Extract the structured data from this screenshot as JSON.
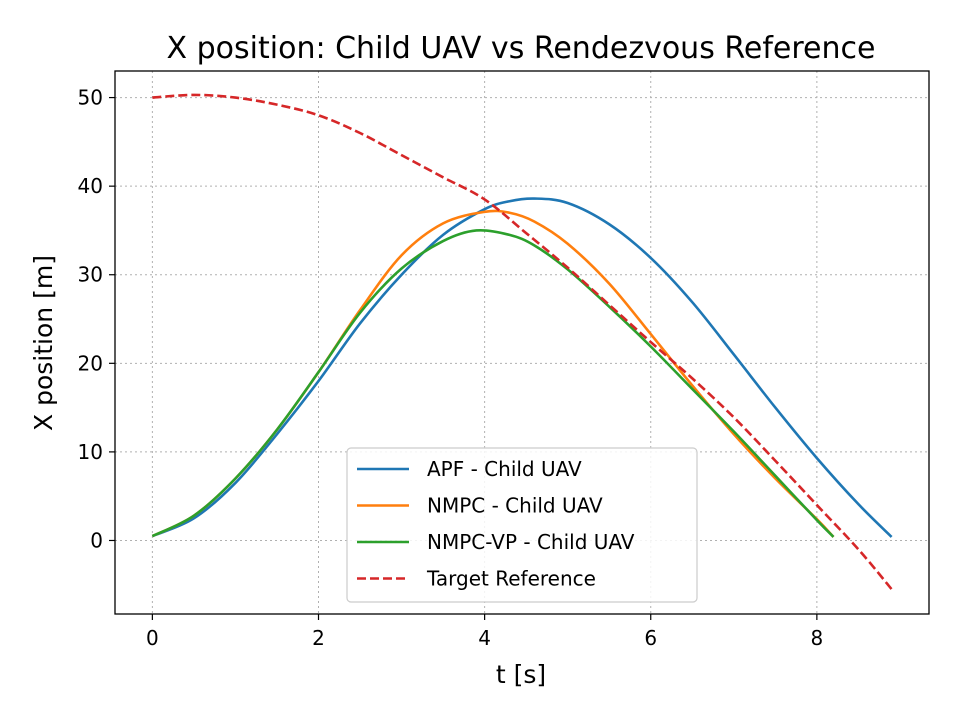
{
  "chart_data": {
    "type": "line",
    "title": "X position: Child UAV vs Rendezvous Reference",
    "xlabel": "t [s]",
    "ylabel": "X position [m]",
    "xlim": [
      -0.45,
      9.35
    ],
    "ylim": [
      -8.3,
      53.0
    ],
    "xticks": [
      0,
      2,
      4,
      6,
      8
    ],
    "yticks": [
      0,
      10,
      20,
      30,
      40,
      50
    ],
    "grid": true,
    "legend_position": "lower center",
    "series": [
      {
        "name": "APF - Child UAV",
        "color": "#1f77b4",
        "dash": "solid",
        "x": [
          0,
          0.5,
          1,
          1.5,
          2,
          2.5,
          3,
          3.5,
          4,
          4.3,
          4.6,
          5,
          5.5,
          6,
          6.5,
          7,
          7.5,
          8,
          8.5,
          8.9
        ],
        "y": [
          0.5,
          2.5,
          6.5,
          12.0,
          18.0,
          24.5,
          30.0,
          34.5,
          37.4,
          38.3,
          38.6,
          38.1,
          35.7,
          31.9,
          26.9,
          21.0,
          15.0,
          9.3,
          4.1,
          0.4
        ]
      },
      {
        "name": "NMPC - Child UAV",
        "color": "#ff7f0e",
        "dash": "solid",
        "x": [
          0,
          0.5,
          1,
          1.5,
          2,
          2.5,
          3,
          3.5,
          4,
          4.3,
          4.6,
          5,
          5.5,
          6,
          6.5,
          7,
          7.5,
          8,
          8.2
        ],
        "y": [
          0.5,
          2.8,
          7.0,
          12.5,
          19.0,
          26.0,
          32.2,
          35.8,
          37.1,
          37.0,
          36.0,
          33.5,
          29.0,
          23.3,
          17.5,
          12.0,
          7.0,
          2.4,
          0.4
        ]
      },
      {
        "name": "NMPC-VP - Child UAV",
        "color": "#2ca02c",
        "dash": "solid",
        "x": [
          0,
          0.5,
          1,
          1.5,
          2,
          2.5,
          3,
          3.5,
          3.9,
          4.3,
          4.6,
          5,
          5.5,
          6,
          6.5,
          7,
          7.5,
          8,
          8.2
        ],
        "y": [
          0.5,
          2.8,
          7.0,
          12.5,
          19.0,
          25.7,
          30.7,
          33.8,
          35.0,
          34.5,
          33.3,
          30.6,
          26.4,
          21.9,
          17.1,
          12.3,
          7.3,
          2.3,
          0.4
        ]
      },
      {
        "name": "Target Reference",
        "color": "#d62728",
        "dash": "dashed",
        "x": [
          0,
          0.5,
          1,
          1.5,
          2,
          2.5,
          3,
          3.5,
          4,
          4.5,
          5,
          5.5,
          6,
          6.5,
          7,
          7.5,
          8,
          8.5,
          8.9
        ],
        "y": [
          50.0,
          50.3,
          50.0,
          49.2,
          48.0,
          46.0,
          43.5,
          41.0,
          38.5,
          34.7,
          30.8,
          26.6,
          22.4,
          18.3,
          13.9,
          9.0,
          4.0,
          -1.0,
          -5.5
        ]
      }
    ]
  }
}
